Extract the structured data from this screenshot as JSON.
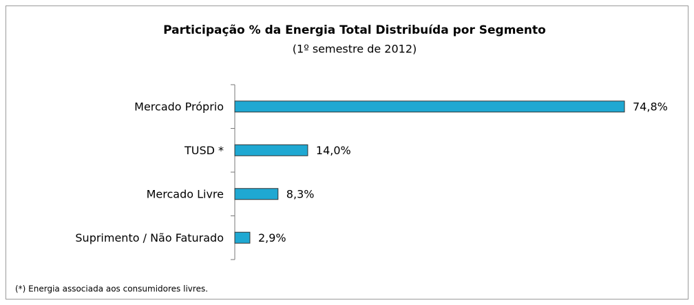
{
  "chart_data": {
    "type": "bar",
    "orientation": "horizontal",
    "title": "Participação % da Energia Total Distribuída por Segmento",
    "subtitle": "(1º semestre de 2012)",
    "categories": [
      "Mercado Próprio",
      "TUSD *",
      "Mercado Livre",
      "Suprimento / Não Faturado"
    ],
    "values": [
      74.8,
      14.0,
      8.3,
      2.9
    ],
    "value_labels": [
      "74,8%",
      "14,0%",
      "8,3%",
      "2,9%"
    ],
    "color": "#1fa8d2",
    "footnote": "(*) Energia associada aos consumidores livres."
  }
}
